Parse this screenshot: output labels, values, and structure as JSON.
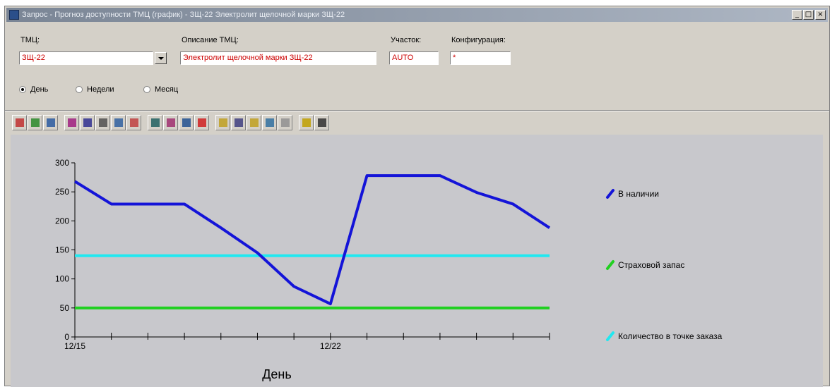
{
  "window": {
    "title": "Запрос - Прогноз доступности ТМЦ (график) - ЗЩ-22  Электролит щелочной марки ЗЩ-22",
    "controls": {
      "minimize": "_",
      "maximize": "□",
      "close": "×"
    }
  },
  "form": {
    "tmc": {
      "label": "ТМЦ:",
      "value": "ЗЩ-22"
    },
    "description": {
      "label": "Описание ТМЦ:",
      "value": "Электролит щелочной марки ЗЩ-22"
    },
    "section": {
      "label": "Участок:",
      "value": "AUTO"
    },
    "configuration": {
      "label": "Конфигурация:",
      "value": "*"
    }
  },
  "period": {
    "options": [
      {
        "label": "День",
        "selected": true
      },
      {
        "label": "Недели",
        "selected": false
      },
      {
        "label": "Месяц",
        "selected": false
      }
    ]
  },
  "toolbar": {
    "buttons": [
      {
        "name": "bar-chart-icon",
        "color": "#c03030"
      },
      {
        "name": "pie-chart-icon",
        "color": "#2a8a2a"
      },
      {
        "name": "table-chart-icon",
        "color": "#2a5aa0"
      },
      {
        "name": "columns-icon",
        "color": "#a02080"
      },
      {
        "name": "labels-icon",
        "color": "#303090"
      },
      {
        "name": "grid-icon",
        "color": "#505050"
      },
      {
        "name": "layout-icon",
        "color": "#3060a0"
      },
      {
        "name": "rotate-icon",
        "color": "#c04040"
      },
      {
        "name": "frame-icon",
        "color": "#206060"
      },
      {
        "name": "brush-icon",
        "color": "#a03070"
      },
      {
        "name": "paint-icon",
        "color": "#205090"
      },
      {
        "name": "marker-icon",
        "color": "#d02020"
      },
      {
        "name": "folder-icon",
        "color": "#c0a020"
      },
      {
        "name": "list-icon",
        "color": "#404080"
      },
      {
        "name": "tag-icon",
        "color": "#c0a020"
      },
      {
        "name": "chart-edit-icon",
        "color": "#3070a0"
      },
      {
        "name": "pencil-icon",
        "color": "#909090"
      },
      {
        "name": "lightbulb-icon",
        "color": "#c0a000"
      },
      {
        "name": "magnifier-icon",
        "color": "#303030"
      }
    ]
  },
  "chart_data": {
    "type": "line",
    "xlabel": "День",
    "ylabel": "",
    "title": "",
    "ylim": [
      0,
      300
    ],
    "yticks": [
      0,
      50,
      100,
      150,
      200,
      250,
      300
    ],
    "x": [
      "12/15",
      "12/16",
      "12/17",
      "12/18",
      "12/19",
      "12/20",
      "12/21",
      "12/22",
      "12/23",
      "12/24",
      "12/25",
      "12/26",
      "12/27",
      "12/28"
    ],
    "x_tick_labels": [
      {
        "index": 0,
        "label": "12/15"
      },
      {
        "index": 7,
        "label": "12/22"
      }
    ],
    "series": [
      {
        "name": "В наличии",
        "color": "#1414d8",
        "values": [
          268,
          229,
          229,
          229,
          188,
          145,
          87,
          57,
          278,
          278,
          278,
          249,
          229,
          188
        ]
      },
      {
        "name": "Страховой запас",
        "color": "#20d020",
        "values": [
          50,
          50,
          50,
          50,
          50,
          50,
          50,
          50,
          50,
          50,
          50,
          50,
          50,
          50
        ]
      },
      {
        "name": "Количество в точке заказа",
        "color": "#20e8f0",
        "values": [
          140,
          140,
          140,
          140,
          140,
          140,
          140,
          140,
          140,
          140,
          140,
          140,
          140,
          140
        ]
      }
    ],
    "legend_position": "right",
    "grid": false
  }
}
